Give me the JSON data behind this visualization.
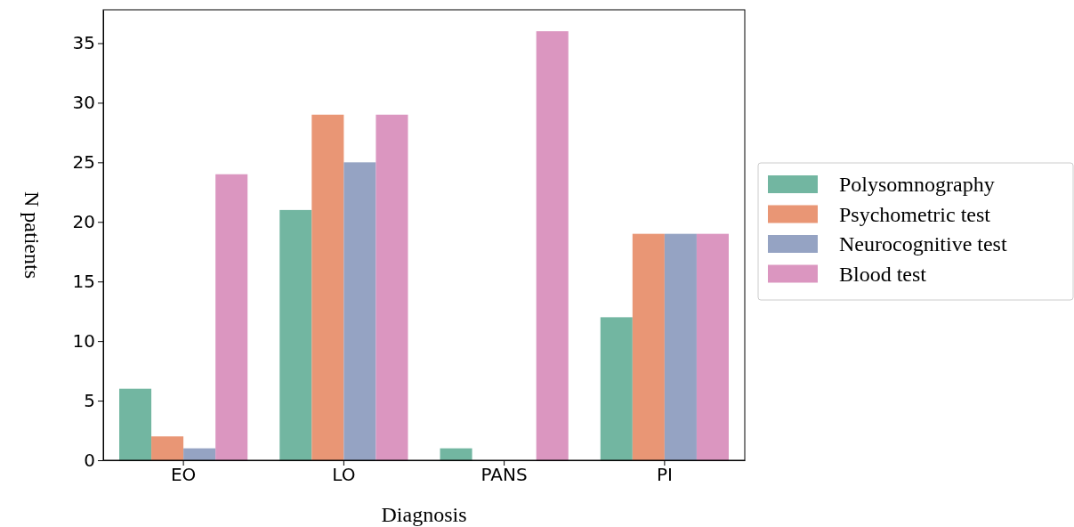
{
  "chart_data": {
    "type": "bar",
    "xlabel": "Diagnosis",
    "ylabel": "N patients",
    "categories": [
      "EO",
      "LO",
      "PANS",
      "PI"
    ],
    "series": [
      {
        "name": "Polysomnography",
        "color": "#72b6a1",
        "values": [
          6,
          21,
          1,
          12
        ]
      },
      {
        "name": "Psychometric test",
        "color": "#e99675",
        "values": [
          2,
          29,
          0,
          19
        ]
      },
      {
        "name": "Neurocognitive test",
        "color": "#95a3c3",
        "values": [
          1,
          25,
          0,
          19
        ]
      },
      {
        "name": "Blood test",
        "color": "#db96c0",
        "values": [
          24,
          29,
          36,
          19
        ]
      }
    ],
    "ylim": [
      0,
      37.8
    ],
    "yticks": [
      0,
      5,
      10,
      15,
      20,
      25,
      30,
      35
    ],
    "grid": false,
    "legend": "right"
  }
}
